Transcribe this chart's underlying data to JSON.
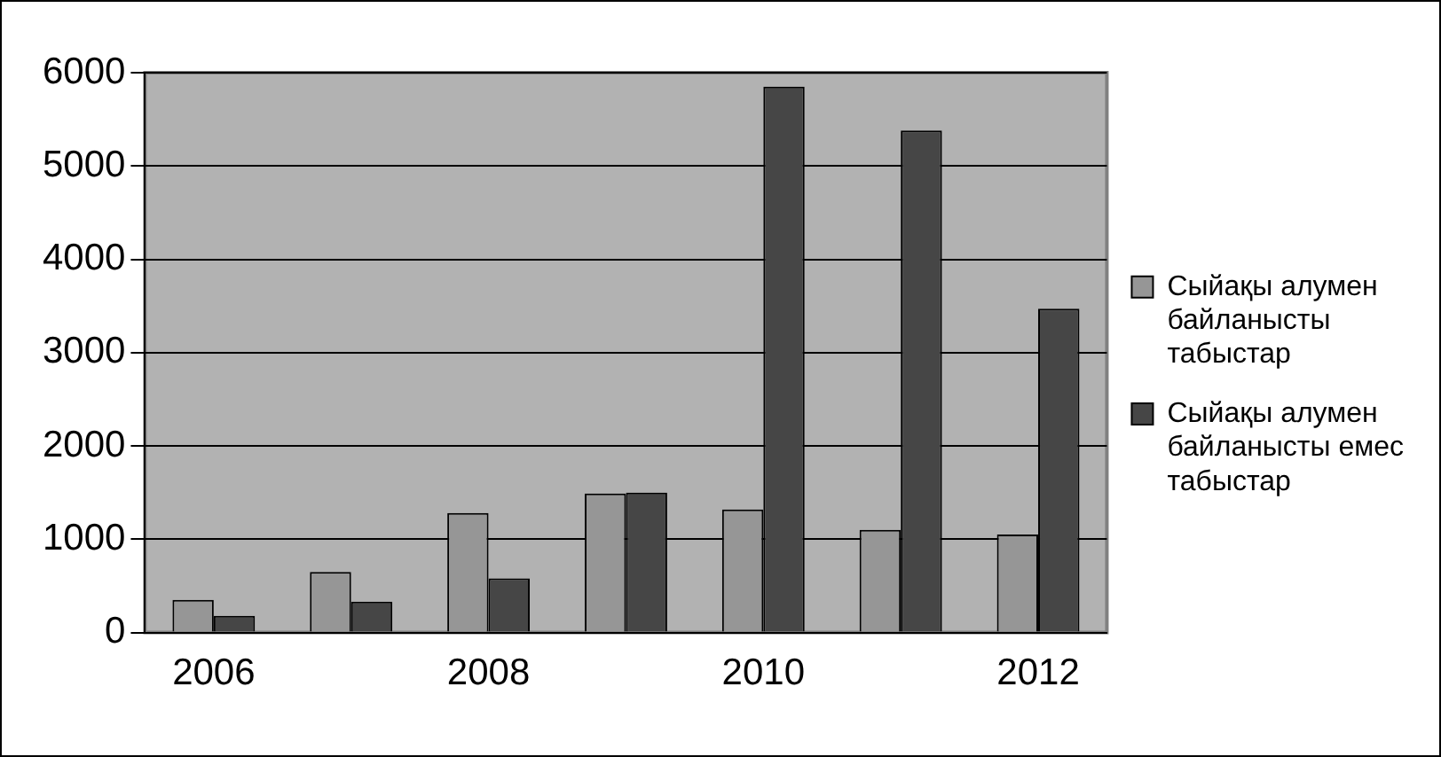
{
  "chart_data": {
    "type": "bar",
    "categories": [
      "2006",
      null,
      "2008",
      null,
      "2010",
      null,
      "2012"
    ],
    "series": [
      {
        "name": "Сыйақы алумен байланысты табыстар",
        "color": "#969696",
        "values": [
          350,
          650,
          1280,
          1490,
          1320,
          1100,
          1050
        ]
      },
      {
        "name": "Сыйақы алумен байланысты емес табыстар",
        "color": "#464646",
        "values": [
          180,
          330,
          580,
          1500,
          5850,
          5380,
          3470
        ]
      }
    ],
    "ylim": [
      0,
      6000
    ],
    "yticks": [
      0,
      1000,
      2000,
      3000,
      4000,
      5000,
      6000
    ],
    "grid": "y",
    "legend": "right"
  }
}
